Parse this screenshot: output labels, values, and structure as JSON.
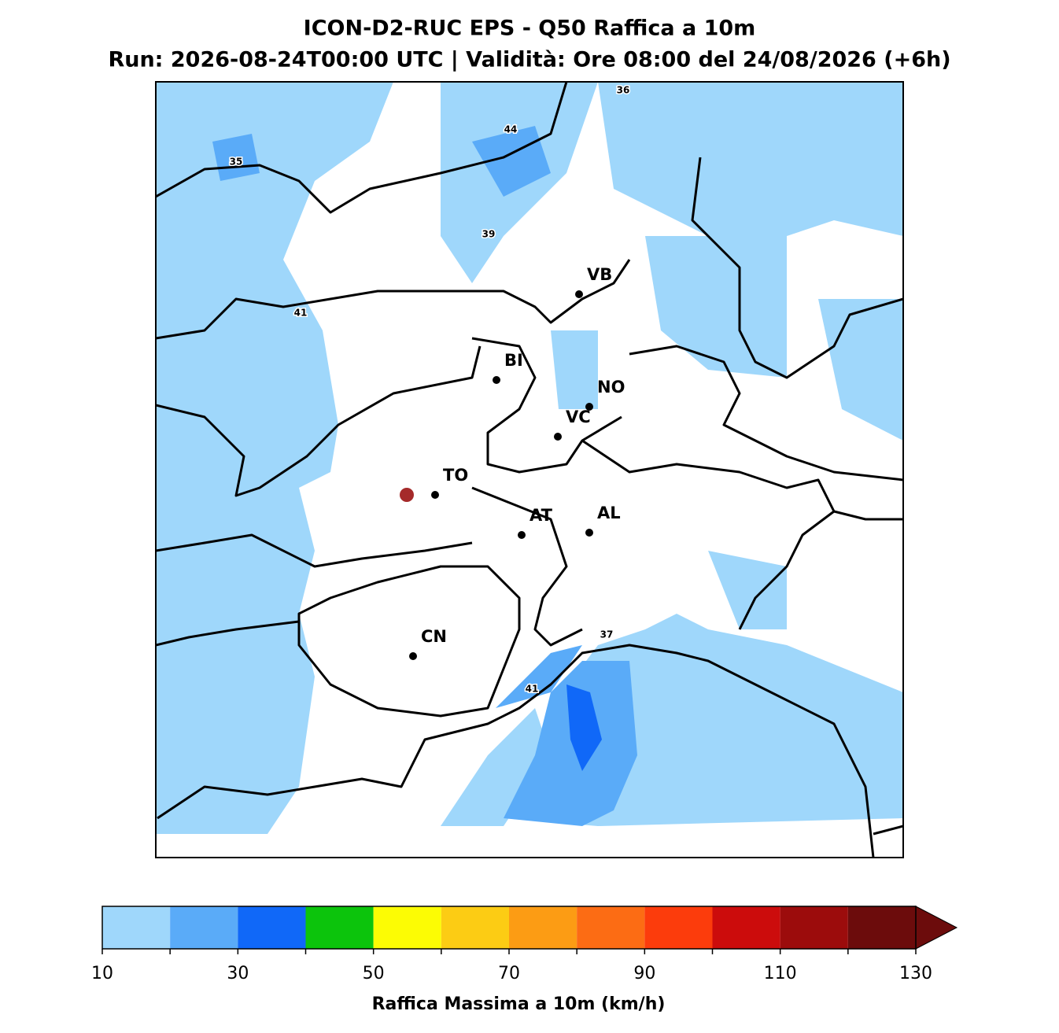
{
  "header": {
    "title": "ICON-D2-RUC EPS - Q50 Raffica a 10m",
    "subtitle": "Run: 2026-08-24T00:00 UTC | Validità: Ore 08:00 del 24/08/2026 (+6h)"
  },
  "map": {
    "cities": [
      "VB",
      "BI",
      "NO",
      "VC",
      "TO",
      "AT",
      "AL",
      "CN"
    ],
    "contour_labels": [
      36,
      44,
      35,
      39,
      41,
      37,
      41
    ]
  },
  "colorbar": {
    "levels": [
      10,
      20,
      30,
      40,
      50,
      60,
      70,
      80,
      90,
      100,
      110,
      120,
      130
    ],
    "colors": [
      "#9fd7fb",
      "#5aabf8",
      "#1068f8",
      "#0cc40c",
      "#fcfc04",
      "#fccc14",
      "#fc9c14",
      "#fc6c14",
      "#fc3c0c",
      "#cc0c0c",
      "#9c0c0c",
      "#6c0c0c"
    ],
    "extend": "max",
    "ticks": [
      10,
      30,
      50,
      70,
      90,
      110,
      130
    ],
    "label": "Raffica Massima a 10m (km/h)"
  }
}
